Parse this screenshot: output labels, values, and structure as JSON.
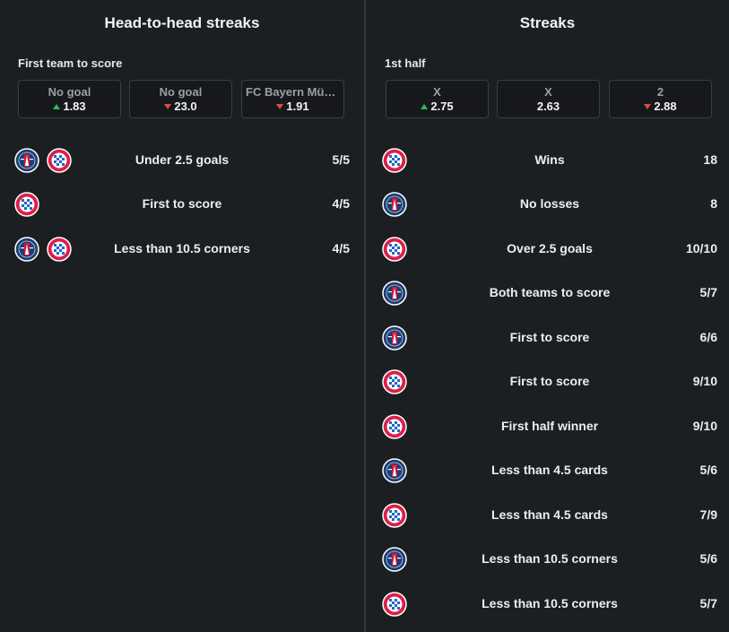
{
  "h2h": {
    "title": "Head-to-head streaks",
    "sublabel": "First team to score",
    "odds": [
      {
        "label": "No goal",
        "value": "1.83",
        "trend": "up"
      },
      {
        "label": "No goal",
        "value": "23.0",
        "trend": "down"
      },
      {
        "label": "FC Bayern München",
        "value": "1.91",
        "trend": "down"
      }
    ],
    "rows": [
      {
        "teams": [
          "psg",
          "bayern"
        ],
        "text": "Under 2.5 goals",
        "value": "5/5"
      },
      {
        "teams": [
          "bayern"
        ],
        "text": "First to score",
        "value": "4/5"
      },
      {
        "teams": [
          "psg",
          "bayern"
        ],
        "text": "Less than 10.5 corners",
        "value": "4/5"
      }
    ]
  },
  "streaks": {
    "title": "Streaks",
    "sublabel": "1st half",
    "odds": [
      {
        "label": "X",
        "value": "2.75",
        "trend": "up"
      },
      {
        "label": "X",
        "value": "2.63",
        "trend": "none"
      },
      {
        "label": "2",
        "value": "2.88",
        "trend": "down"
      }
    ],
    "rows": [
      {
        "teams": [
          "bayern"
        ],
        "text": "Wins",
        "value": "18"
      },
      {
        "teams": [
          "psg"
        ],
        "text": "No losses",
        "value": "8"
      },
      {
        "teams": [
          "bayern"
        ],
        "text": "Over 2.5 goals",
        "value": "10/10"
      },
      {
        "teams": [
          "psg"
        ],
        "text": "Both teams to score",
        "value": "5/7"
      },
      {
        "teams": [
          "psg"
        ],
        "text": "First to score",
        "value": "6/6"
      },
      {
        "teams": [
          "bayern"
        ],
        "text": "First to score",
        "value": "9/10"
      },
      {
        "teams": [
          "bayern"
        ],
        "text": "First half winner",
        "value": "9/10"
      },
      {
        "teams": [
          "psg"
        ],
        "text": "Less than 4.5 cards",
        "value": "5/6"
      },
      {
        "teams": [
          "bayern"
        ],
        "text": "Less than 4.5 cards",
        "value": "7/9"
      },
      {
        "teams": [
          "psg"
        ],
        "text": "Less than 10.5 corners",
        "value": "5/6"
      },
      {
        "teams": [
          "bayern"
        ],
        "text": "Less than 10.5 corners",
        "value": "5/7"
      }
    ]
  },
  "colors": {
    "background": "#1c1f22",
    "up": "#33b566",
    "down": "#e04b3a",
    "psg_blue": "#1b3f73",
    "bayern_red": "#dc1f48"
  }
}
